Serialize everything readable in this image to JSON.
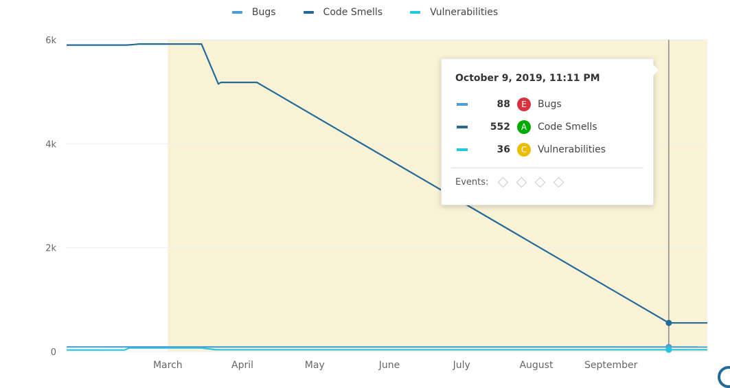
{
  "chart_data": {
    "type": "line",
    "title": "",
    "xlabel": "",
    "ylabel": "",
    "ylim": [
      0,
      6000
    ],
    "y_ticks": [
      {
        "value": 0,
        "label": "0"
      },
      {
        "value": 2000,
        "label": "2k"
      },
      {
        "value": 4000,
        "label": "4k"
      },
      {
        "value": 6000,
        "label": "6k"
      }
    ],
    "x_ticks": [
      {
        "date": "2019-03-01",
        "label": "March"
      },
      {
        "date": "2019-04-01",
        "label": "April"
      },
      {
        "date": "2019-05-01",
        "label": "May"
      },
      {
        "date": "2019-06-01",
        "label": "June"
      },
      {
        "date": "2019-07-01",
        "label": "July"
      },
      {
        "date": "2019-08-01",
        "label": "August"
      },
      {
        "date": "2019-09-01",
        "label": "September"
      }
    ],
    "xlim": [
      "2019-02-01",
      "2019-10-25"
    ],
    "highlight_range": [
      "2019-03-15",
      "2019-10-25"
    ],
    "cursor_date": "2019-10-09",
    "grid": true,
    "legend_position": "top-center",
    "series": [
      {
        "name": "Bugs",
        "color": "#4b9fd5",
        "points": [
          [
            "2019-02-01",
            90
          ],
          [
            "2019-10-25",
            88
          ]
        ]
      },
      {
        "name": "Code Smells",
        "color": "#236a97",
        "points": [
          [
            "2019-02-01",
            5900
          ],
          [
            "2019-02-26",
            5900
          ],
          [
            "2019-03-01",
            5910
          ],
          [
            "2019-03-03",
            5920
          ],
          [
            "2019-03-29",
            5920
          ],
          [
            "2019-04-05",
            5150
          ],
          [
            "2019-04-06",
            5180
          ],
          [
            "2019-04-21",
            5180
          ],
          [
            "2019-10-09",
            552
          ],
          [
            "2019-10-25",
            552
          ]
        ]
      },
      {
        "name": "Vulnerabilities",
        "color": "#24c6e0",
        "points": [
          [
            "2019-02-01",
            30
          ],
          [
            "2019-02-25",
            30
          ],
          [
            "2019-02-27",
            70
          ],
          [
            "2019-03-29",
            70
          ],
          [
            "2019-04-04",
            36
          ],
          [
            "2019-10-25",
            36
          ]
        ]
      }
    ]
  },
  "legend": [
    {
      "name": "Bugs",
      "color": "#4b9fd5"
    },
    {
      "name": "Code Smells",
      "color": "#236a97"
    },
    {
      "name": "Vulnerabilities",
      "color": "#24c6e0"
    }
  ],
  "tooltip": {
    "title": "October 9, 2019, 11:11 PM",
    "rows": [
      {
        "value": "88",
        "rating": "E",
        "rating_color": "#d4333f",
        "name": "Bugs",
        "color": "#4b9fd5"
      },
      {
        "value": "552",
        "rating": "A",
        "rating_color": "#00aa00",
        "name": "Code Smells",
        "color": "#236a97"
      },
      {
        "value": "36",
        "rating": "C",
        "rating_color": "#eabe06",
        "name": "Vulnerabilities",
        "color": "#24c6e0"
      }
    ],
    "events_label": "Events:",
    "events": [
      "event-1",
      "event-2",
      "event-3",
      "event-4"
    ]
  }
}
